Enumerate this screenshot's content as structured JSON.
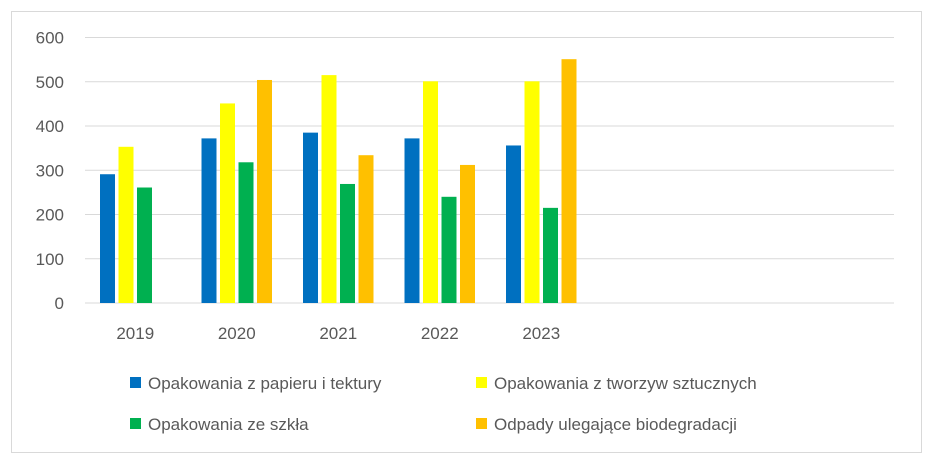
{
  "chart_data": {
    "type": "bar",
    "categories": [
      "2019",
      "2020",
      "2021",
      "2022",
      "2023"
    ],
    "series": [
      {
        "name": "Opakowania z papieru i tektury",
        "color": "#0070C0",
        "values": [
          291,
          372,
          385,
          372,
          356
        ]
      },
      {
        "name": "Opakowania z tworzyw sztucznych",
        "color": "#FFFF00",
        "values": [
          353,
          451,
          515,
          501,
          501
        ]
      },
      {
        "name": "Opakowania ze szkła",
        "color": "#00B050",
        "values": [
          261,
          318,
          269,
          240,
          215
        ]
      },
      {
        "name": "Odpady ulegające biodegradacji",
        "color": "#FFC000",
        "values": [
          null,
          504,
          334,
          312,
          551
        ]
      }
    ],
    "y_ticks": [
      "0",
      "100",
      "200",
      "300",
      "400",
      "500",
      "600"
    ],
    "ylim": [
      0,
      600
    ],
    "grid": true,
    "legend_position": "bottom",
    "gridline_color": "#d9d9d9",
    "text_color": "#595959"
  }
}
